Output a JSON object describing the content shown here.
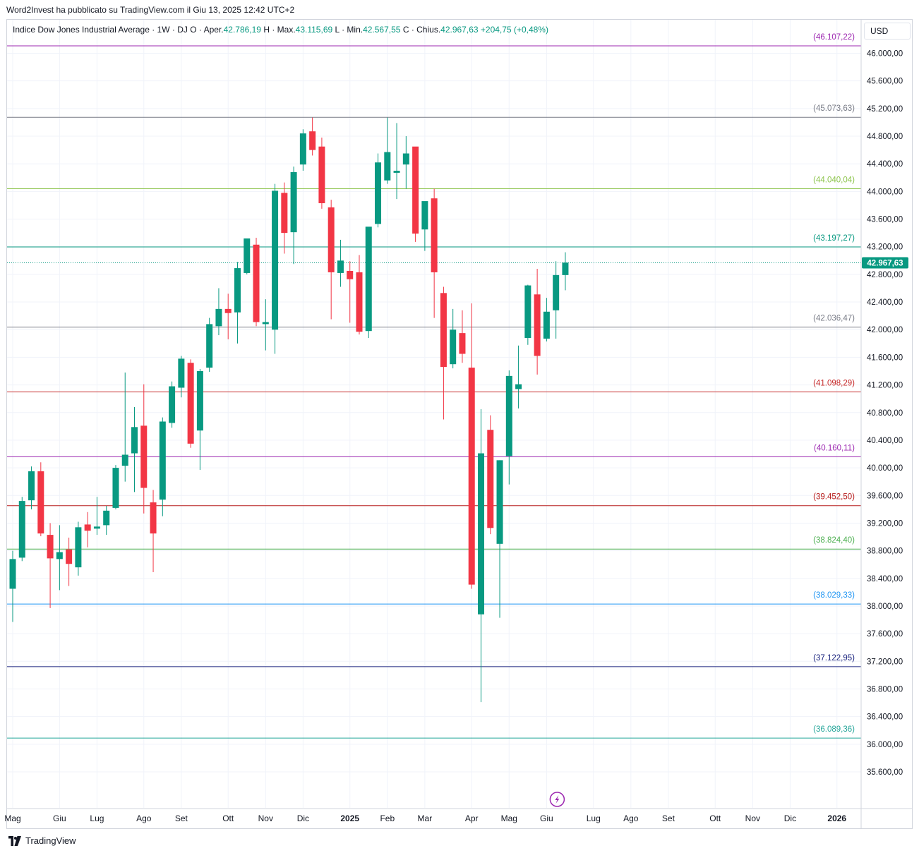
{
  "published_by": "Word2Invest ha pubblicato su TradingView.com il Giu 13, 2025 12:42 UTC+2",
  "legend": {
    "symbol": "Indice Dow Jones Industrial Average · 1W · DJ",
    "open_label": "O · Aper.",
    "open": "42.786,19",
    "high_label": "H · Max.",
    "high": "43.115,69",
    "low_label": "L · Min.",
    "low": "42.567,55",
    "close_label": "C · Chius.",
    "close": "42.967,63",
    "change": "+204,75 (+0,48%)"
  },
  "currency": "USD",
  "brand": "TradingView",
  "colors": {
    "up": "#089981",
    "down": "#f23645",
    "grid": "#f0f3fa",
    "axis_text": "#131722"
  },
  "chart_data": {
    "type": "candlestick",
    "title": "Indice Dow Jones Industrial Average",
    "interval": "1W",
    "exchange": "DJ",
    "currency": "USD",
    "ylim": [
      35400,
      46500
    ],
    "y_ticks": [
      35600,
      36000,
      36400,
      36800,
      37200,
      37600,
      38000,
      38400,
      38800,
      39200,
      39600,
      40000,
      40400,
      40800,
      41200,
      41600,
      42000,
      42400,
      42800,
      43200,
      43600,
      44000,
      44400,
      44800,
      45200,
      45600,
      46000
    ],
    "y_tick_labels": [
      "35.600,00",
      "36.000,00",
      "36.400,00",
      "36.800,00",
      "37.200,00",
      "37.600,00",
      "38.000,00",
      "38.400,00",
      "38.800,00",
      "39.200,00",
      "39.600,00",
      "40.000,00",
      "40.400,00",
      "40.800,00",
      "41.200,00",
      "41.600,00",
      "42.000,00",
      "42.400,00",
      "42.800,00",
      "43.200,00",
      "43.600,00",
      "44.000,00",
      "44.400,00",
      "44.800,00",
      "45.200,00",
      "45.600,00",
      "46.000,00"
    ],
    "x_labels": [
      {
        "label": "Mag",
        "index": 0
      },
      {
        "label": "Giu",
        "index": 5
      },
      {
        "label": "Lug",
        "index": 9
      },
      {
        "label": "Ago",
        "index": 14
      },
      {
        "label": "Set",
        "index": 18
      },
      {
        "label": "Ott",
        "index": 23
      },
      {
        "label": "Nov",
        "index": 27
      },
      {
        "label": "Dic",
        "index": 31
      },
      {
        "label": "2025",
        "index": 36
      },
      {
        "label": "Feb",
        "index": 40
      },
      {
        "label": "Mar",
        "index": 44
      },
      {
        "label": "Apr",
        "index": 49
      },
      {
        "label": "Mag",
        "index": 53
      },
      {
        "label": "Giu",
        "index": 57
      },
      {
        "label": "Lug",
        "index": 62
      },
      {
        "label": "Ago",
        "index": 66
      },
      {
        "label": "Set",
        "index": 70
      },
      {
        "label": "Ott",
        "index": 75
      },
      {
        "label": "Nov",
        "index": 79
      },
      {
        "label": "Dic",
        "index": 83
      },
      {
        "label": "2026",
        "index": 88
      }
    ],
    "last_price": 42967.63,
    "last_price_label": "42.967,63",
    "levels": [
      {
        "value": 46107.22,
        "label": "(46.107,22)",
        "color": "#9c27b0"
      },
      {
        "value": 45073.63,
        "label": "(45.073,63)",
        "color": "#787b86"
      },
      {
        "value": 44040.04,
        "label": "(44.040,04)",
        "color": "#8bc34a"
      },
      {
        "value": 43197.27,
        "label": "(43.197,27)",
        "color": "#089981"
      },
      {
        "value": 42036.47,
        "label": "(42.036,47)",
        "color": "#787b86"
      },
      {
        "value": 41098.29,
        "label": "(41.098,29)",
        "color": "#c62828"
      },
      {
        "value": 40160.11,
        "label": "(40.160,11)",
        "color": "#9c27b0"
      },
      {
        "value": 39452.5,
        "label": "(39.452,50)",
        "color": "#b71c1c"
      },
      {
        "value": 38824.4,
        "label": "(38.824,40)",
        "color": "#4caf50"
      },
      {
        "value": 38029.33,
        "label": "(38.029,33)",
        "color": "#2196f3"
      },
      {
        "value": 37122.95,
        "label": "(37.122,95)",
        "color": "#1a237e"
      },
      {
        "value": 36089.36,
        "label": "(36.089,36)",
        "color": "#26a69a"
      }
    ],
    "candles": [
      {
        "o": 38250,
        "h": 38800,
        "l": 37770,
        "c": 38680
      },
      {
        "o": 38700,
        "h": 39580,
        "l": 38650,
        "c": 39520
      },
      {
        "o": 39530,
        "h": 40020,
        "l": 39400,
        "c": 39950
      },
      {
        "o": 39950,
        "h": 40080,
        "l": 39010,
        "c": 39050
      },
      {
        "o": 39030,
        "h": 39200,
        "l": 37970,
        "c": 38690
      },
      {
        "o": 38680,
        "h": 39170,
        "l": 38230,
        "c": 38780
      },
      {
        "o": 38820,
        "h": 38990,
        "l": 38290,
        "c": 38610
      },
      {
        "o": 38560,
        "h": 39220,
        "l": 38440,
        "c": 39140
      },
      {
        "o": 39180,
        "h": 39360,
        "l": 38850,
        "c": 39090
      },
      {
        "o": 39120,
        "h": 39580,
        "l": 39030,
        "c": 39150
      },
      {
        "o": 39170,
        "h": 39450,
        "l": 39030,
        "c": 39380
      },
      {
        "o": 39420,
        "h": 40040,
        "l": 39400,
        "c": 40000
      },
      {
        "o": 40030,
        "h": 41380,
        "l": 39800,
        "c": 40190
      },
      {
        "o": 40210,
        "h": 40880,
        "l": 39650,
        "c": 40590
      },
      {
        "o": 40610,
        "h": 41210,
        "l": 39340,
        "c": 39710
      },
      {
        "o": 39500,
        "h": 39680,
        "l": 38490,
        "c": 39050
      },
      {
        "o": 39540,
        "h": 40730,
        "l": 39300,
        "c": 40670
      },
      {
        "o": 40650,
        "h": 41250,
        "l": 40580,
        "c": 41180
      },
      {
        "o": 41160,
        "h": 41620,
        "l": 41020,
        "c": 41580
      },
      {
        "o": 41520,
        "h": 41570,
        "l": 40290,
        "c": 40350
      },
      {
        "o": 40540,
        "h": 41430,
        "l": 39970,
        "c": 41400
      },
      {
        "o": 41450,
        "h": 42170,
        "l": 41390,
        "c": 42080
      },
      {
        "o": 42050,
        "h": 42600,
        "l": 41920,
        "c": 42300
      },
      {
        "o": 42300,
        "h": 42520,
        "l": 41860,
        "c": 42240
      },
      {
        "o": 42250,
        "h": 42980,
        "l": 41800,
        "c": 42890
      },
      {
        "o": 42820,
        "h": 43300,
        "l": 42800,
        "c": 43320
      },
      {
        "o": 43230,
        "h": 43330,
        "l": 42050,
        "c": 42110
      },
      {
        "o": 42080,
        "h": 42440,
        "l": 41700,
        "c": 42110
      },
      {
        "o": 42000,
        "h": 44110,
        "l": 41650,
        "c": 44010
      },
      {
        "o": 43980,
        "h": 44130,
        "l": 43100,
        "c": 43400
      },
      {
        "o": 43410,
        "h": 44360,
        "l": 42950,
        "c": 44280
      },
      {
        "o": 44390,
        "h": 44900,
        "l": 44300,
        "c": 44840
      },
      {
        "o": 44870,
        "h": 45070,
        "l": 44520,
        "c": 44600
      },
      {
        "o": 44650,
        "h": 44780,
        "l": 43750,
        "c": 43830
      },
      {
        "o": 43770,
        "h": 43880,
        "l": 42150,
        "c": 42830
      },
      {
        "o": 42820,
        "h": 43300,
        "l": 42620,
        "c": 43000
      },
      {
        "o": 42850,
        "h": 42990,
        "l": 42100,
        "c": 42730
      },
      {
        "o": 42830,
        "h": 43080,
        "l": 41930,
        "c": 41970
      },
      {
        "o": 41980,
        "h": 43450,
        "l": 41880,
        "c": 43490
      },
      {
        "o": 43530,
        "h": 44550,
        "l": 43480,
        "c": 44420
      },
      {
        "o": 44160,
        "h": 45070,
        "l": 44110,
        "c": 44570
      },
      {
        "o": 44270,
        "h": 44990,
        "l": 43890,
        "c": 44300
      },
      {
        "o": 44390,
        "h": 44800,
        "l": 44040,
        "c": 44550
      },
      {
        "o": 44650,
        "h": 44640,
        "l": 43270,
        "c": 43390
      },
      {
        "o": 43450,
        "h": 43840,
        "l": 43140,
        "c": 43860
      },
      {
        "o": 43900,
        "h": 44040,
        "l": 42170,
        "c": 42830
      },
      {
        "o": 42530,
        "h": 42620,
        "l": 40700,
        "c": 41460
      },
      {
        "o": 41500,
        "h": 42300,
        "l": 41440,
        "c": 42000
      },
      {
        "o": 41950,
        "h": 42280,
        "l": 41520,
        "c": 41650
      },
      {
        "o": 41450,
        "h": 42380,
        "l": 38250,
        "c": 38310
      },
      {
        "o": 37880,
        "h": 40850,
        "l": 36610,
        "c": 40210
      },
      {
        "o": 40550,
        "h": 40760,
        "l": 39040,
        "c": 39130
      },
      {
        "o": 38900,
        "h": 40110,
        "l": 37830,
        "c": 40110
      },
      {
        "o": 40170,
        "h": 41410,
        "l": 39760,
        "c": 41330
      },
      {
        "o": 41140,
        "h": 41770,
        "l": 40860,
        "c": 41210
      },
      {
        "o": 41880,
        "h": 42650,
        "l": 41780,
        "c": 42640
      },
      {
        "o": 42510,
        "h": 42880,
        "l": 41350,
        "c": 41620
      },
      {
        "o": 41870,
        "h": 42460,
        "l": 41830,
        "c": 42260
      },
      {
        "o": 42280,
        "h": 42990,
        "l": 41870,
        "c": 42790
      },
      {
        "o": 42790,
        "h": 43120,
        "l": 42570,
        "c": 42970
      }
    ]
  }
}
